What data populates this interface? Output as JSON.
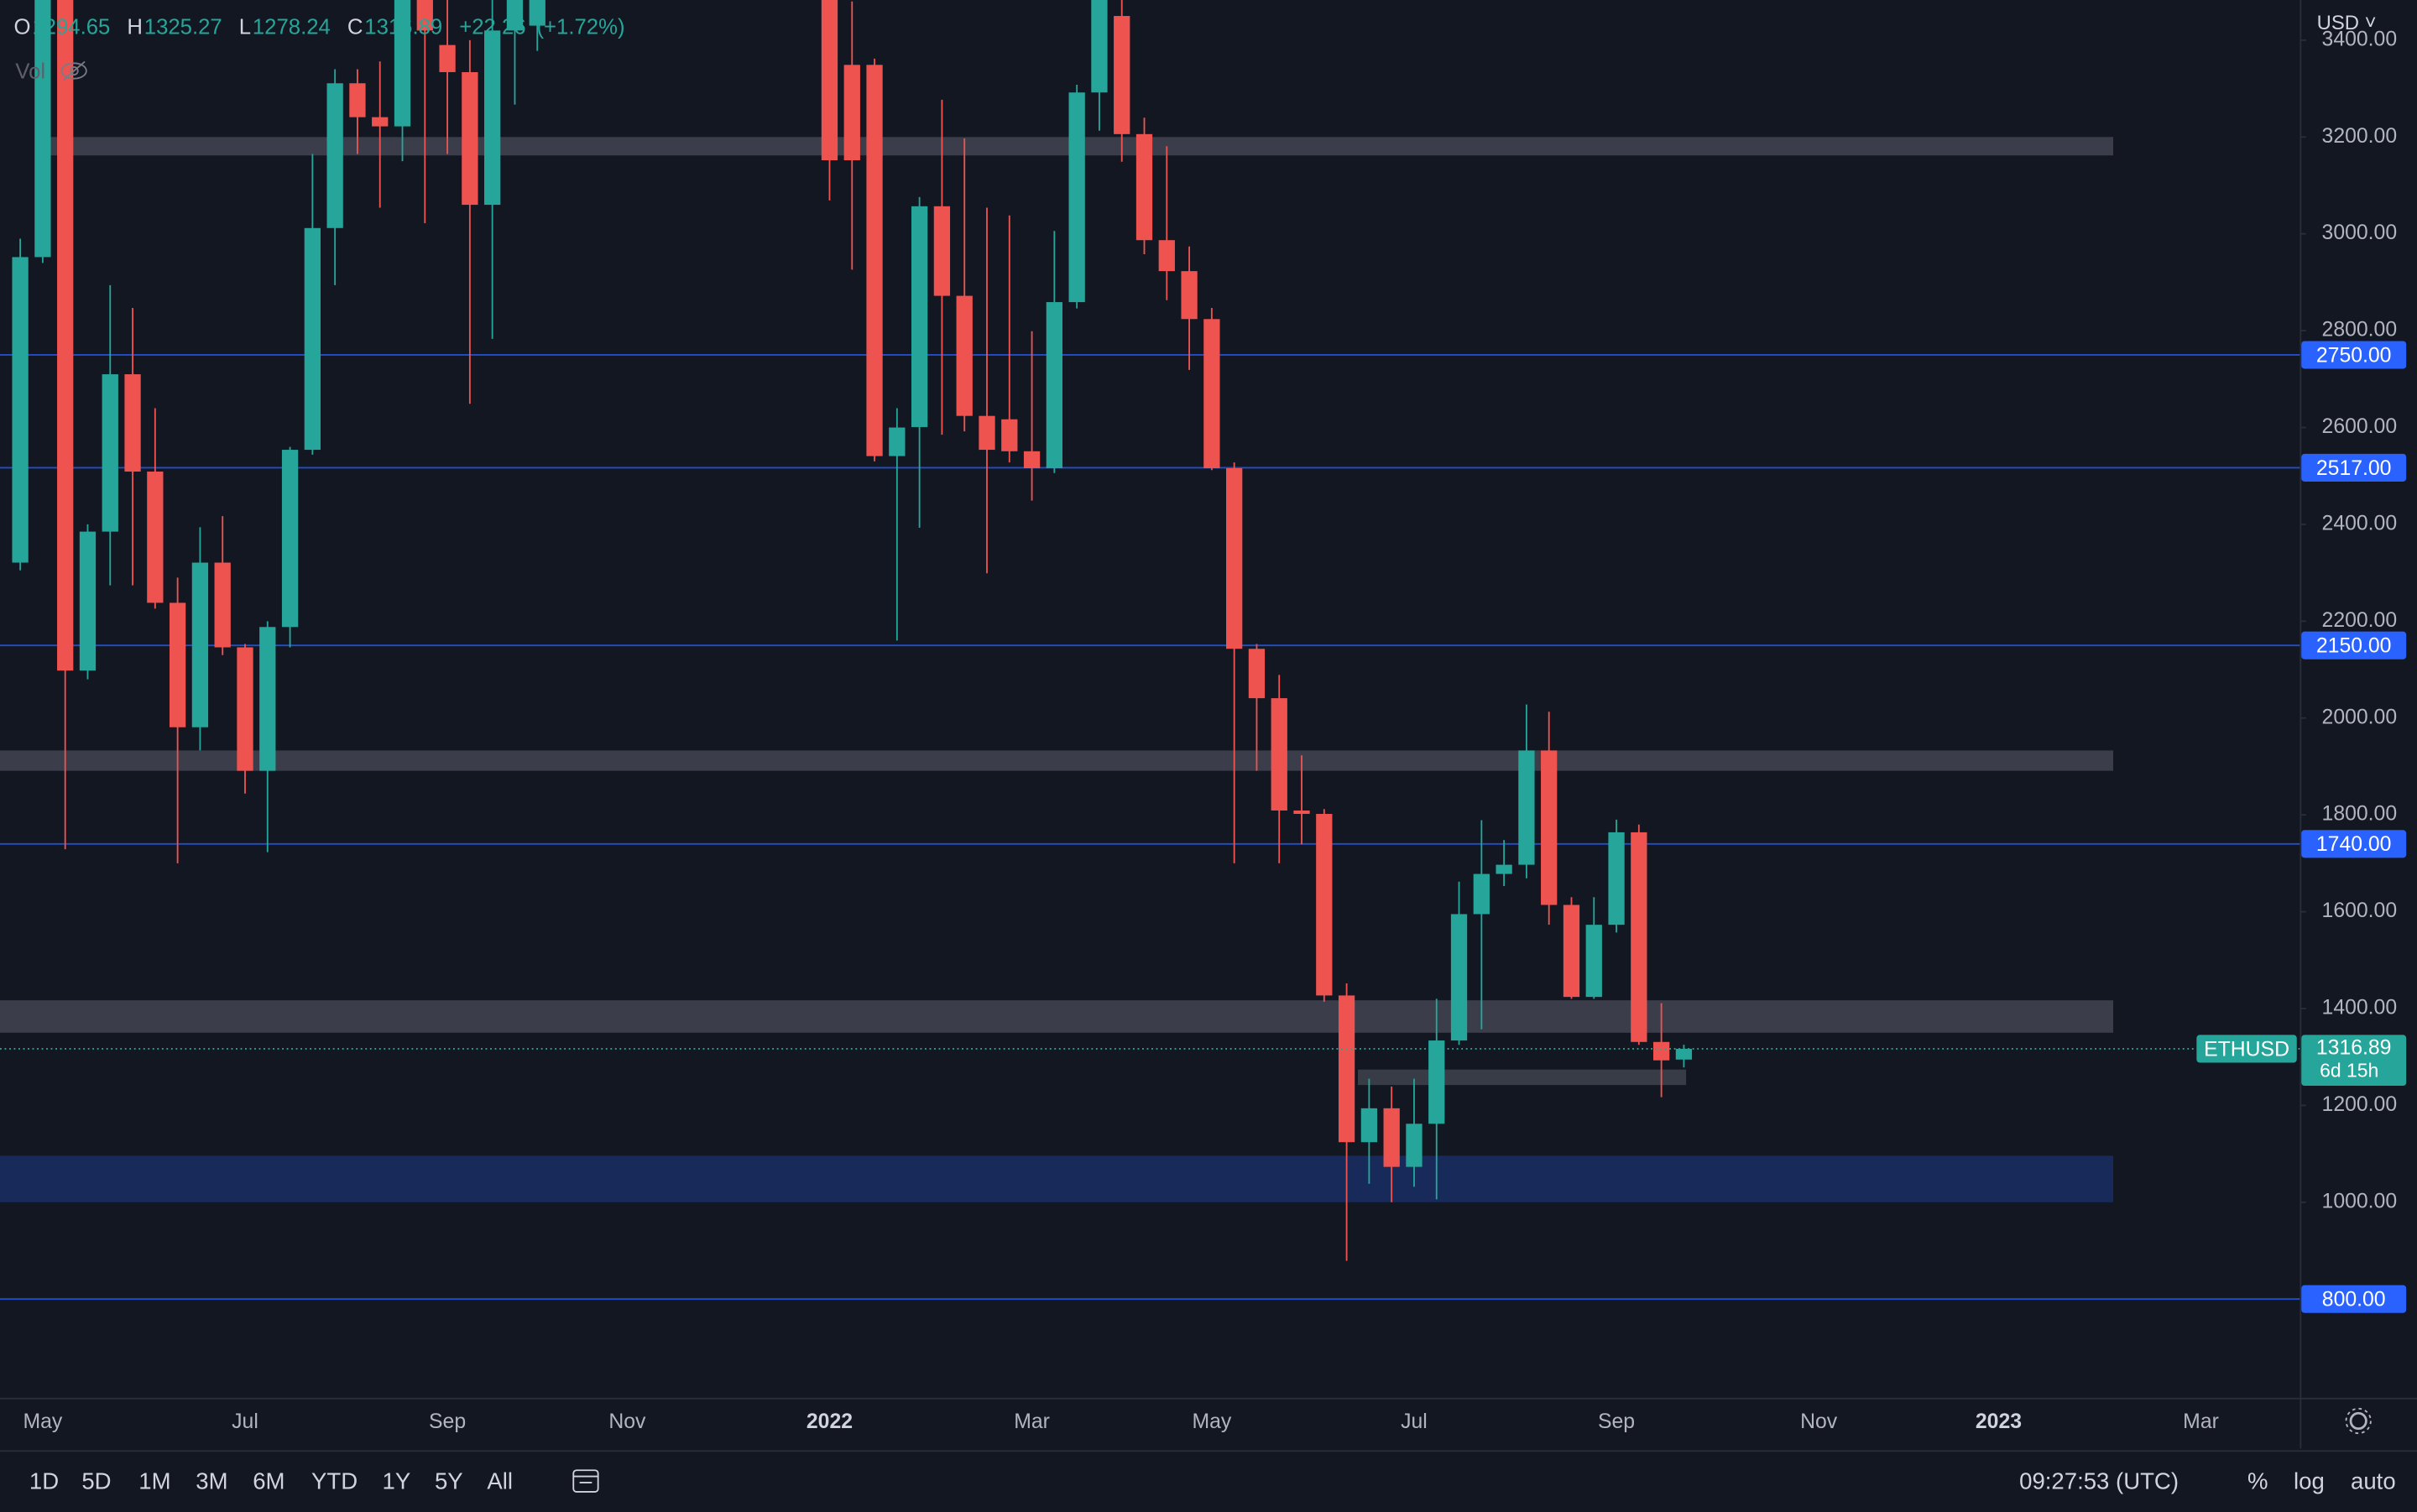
{
  "chart_data": {
    "type": "candlestick",
    "symbol": "ETHUSD",
    "currency": "USD",
    "ohlc_labels": [
      "O",
      "H",
      "L",
      "C"
    ],
    "change": {
      "value": 22.26,
      "label": "+22.26"
    },
    "change_pct": {
      "value": 1.72,
      "label": "(+1.72%)"
    },
    "volume_label": "Vol",
    "countdown": "6d 15h",
    "up_color": "#26a69a",
    "down_color": "#ef5350",
    "x": [
      0,
      1,
      2,
      3,
      4,
      5,
      6,
      7,
      8,
      9,
      10,
      11,
      12,
      13,
      14,
      15,
      16,
      17,
      18,
      19,
      20,
      21,
      22,
      23,
      36,
      37,
      38,
      39,
      40,
      41,
      42,
      43,
      44,
      45,
      46,
      47,
      48,
      49,
      50,
      51,
      52,
      53,
      54,
      55,
      56,
      57,
      58,
      59,
      60,
      61,
      62,
      63,
      64,
      65,
      66,
      67,
      68,
      69,
      70,
      71,
      72,
      73,
      74
    ],
    "open": [
      2321,
      2952,
      3900,
      2098,
      2385,
      2710,
      2509,
      2238,
      1981,
      2321,
      2146,
      1891,
      2188,
      2554,
      3012,
      3311,
      3241,
      3222,
      3900,
      3390,
      3334,
      3060,
      3420,
      3430,
      3700,
      3349,
      3349,
      2541,
      2601,
      3057,
      2872,
      2624,
      2617,
      2551,
      2516,
      2859,
      3292,
      3450,
      3206,
      2987,
      2923,
      2824,
      2516,
      2143,
      2041,
      1809,
      1802,
      1427,
      1124,
      1194,
      1073,
      1162,
      1334,
      1595,
      1678,
      1697,
      1933,
      1614,
      1424,
      1573,
      1764,
      1331,
      1294.65
    ],
    "high": [
      2990,
      3600,
      4000,
      2400,
      2894,
      2847,
      2640,
      2290,
      2394,
      2417,
      2153,
      2200,
      2560,
      3165,
      3340,
      3340,
      3356,
      4000,
      4000,
      3500,
      3400,
      3550,
      3700,
      3900,
      3860,
      3480,
      3362,
      2640,
      3076,
      3277,
      3197,
      3054,
      3038,
      2799,
      3006,
      3308,
      3550,
      3550,
      3240,
      3181,
      2974,
      2847,
      2528,
      2153,
      2089,
      1923,
      1812,
      1452,
      1255,
      1239,
      1255,
      1420,
      1662,
      1789,
      1748,
      2028,
      2013,
      1630,
      1630,
      1790,
      1780,
      1411,
      1325.27
    ],
    "low": [
      2305,
      2940,
      1729,
      2080,
      2274,
      2274,
      2226,
      1700,
      1933,
      2130,
      1844,
      1723,
      2146,
      2544,
      2894,
      3165,
      3054,
      3150,
      3022,
      3165,
      2649,
      2783,
      3267,
      3378,
      3069,
      2926,
      2530,
      2160,
      2393,
      2585,
      2592,
      2299,
      2528,
      2449,
      2506,
      2846,
      3213,
      3149,
      2958,
      2863,
      2719,
      2512,
      1700,
      1891,
      1700,
      1739,
      1414,
      879,
      1038,
      1000,
      1032,
      1006,
      1325,
      1357,
      1653,
      1669,
      1573,
      1420,
      1420,
      1557,
      1325,
      1217,
      1278.24
    ],
    "close": [
      2952,
      3530,
      2098,
      2385,
      2710,
      2509,
      2238,
      1981,
      2321,
      2146,
      1891,
      2188,
      2554,
      3012,
      3311,
      3241,
      3222,
      3900,
      3420,
      3334,
      3060,
      3420,
      3600,
      3800,
      3152,
      3152,
      2541,
      2600,
      3057,
      2872,
      2624,
      2554,
      2551,
      2516,
      2859,
      3292,
      3500,
      3206,
      2987,
      2923,
      2824,
      2516,
      2143,
      2041,
      1809,
      1802,
      1427,
      1124,
      1194,
      1073,
      1162,
      1334,
      1595,
      1678,
      1697,
      1933,
      1614,
      1424,
      1573,
      1764,
      1331,
      1293,
      1316.89
    ],
    "xlim": [
      -0.9,
      101.4
    ],
    "xticks": [
      {
        "value": 1,
        "label": "May"
      },
      {
        "value": 10,
        "label": "Jul"
      },
      {
        "value": 19,
        "label": "Sep"
      },
      {
        "value": 27,
        "label": "Nov"
      },
      {
        "value": 36,
        "label": "2022"
      },
      {
        "value": 45,
        "label": "Mar"
      },
      {
        "value": 53,
        "label": "May"
      },
      {
        "value": 62,
        "label": "Jul"
      },
      {
        "value": 71,
        "label": "Sep"
      },
      {
        "value": 80,
        "label": "Nov"
      },
      {
        "value": 88,
        "label": "2023"
      },
      {
        "value": 97,
        "label": "Mar"
      }
    ],
    "ylim": [
      596,
      3483
    ],
    "yticks": [
      {
        "value": 1000,
        "label": "1000.00"
      },
      {
        "value": 1200,
        "label": "1200.00"
      },
      {
        "value": 1400,
        "label": "1400.00"
      },
      {
        "value": 1600,
        "label": "1600.00"
      },
      {
        "value": 1800,
        "label": "1800.00"
      },
      {
        "value": 2000,
        "label": "2000.00"
      },
      {
        "value": 2200,
        "label": "2200.00"
      },
      {
        "value": 2400,
        "label": "2400.00"
      },
      {
        "value": 2600,
        "label": "2600.00"
      },
      {
        "value": 2800,
        "label": "2800.00"
      },
      {
        "value": 3000,
        "label": "3000.00"
      },
      {
        "value": 3200,
        "label": "3200.00"
      },
      {
        "value": 3400,
        "label": "3400.00"
      }
    ],
    "levels": [
      {
        "value": 2750,
        "label": "2750.00"
      },
      {
        "value": 2517,
        "label": "2517.00"
      },
      {
        "value": 2150,
        "label": "2150.00"
      },
      {
        "value": 1740,
        "label": "1740.00"
      },
      {
        "value": 800,
        "label": "800.00"
      }
    ],
    "level_color": "#2962ff",
    "zones": [
      {
        "from": 3162,
        "to": 3200,
        "x": [
          1.15,
          93.1
        ],
        "color": "rgba(120,123,134,0.4)"
      },
      {
        "from": 1891,
        "to": 1933,
        "x": [
          -0.9,
          93.1
        ],
        "color": "rgba(120,123,134,0.4)"
      },
      {
        "from": 1350,
        "to": 1417,
        "x": [
          -0.9,
          93.1
        ],
        "color": "rgba(120,123,134,0.4)"
      },
      {
        "from": 1242,
        "to": 1274,
        "x": [
          59.5,
          74.1
        ],
        "color": "rgba(70,73,84,0.75)"
      },
      {
        "from": 1000,
        "to": 1096,
        "x": [
          -0.9,
          93.1
        ],
        "color": "rgba(41,98,255,0.25)"
      }
    ]
  },
  "toolbar": {
    "timeframes": [
      "1D",
      "5D",
      "1M",
      "3M",
      "6M",
      "YTD",
      "1Y",
      "5Y",
      "All"
    ],
    "clock": "09:27:53 (UTC)",
    "options": [
      "%",
      "log",
      "auto"
    ]
  }
}
